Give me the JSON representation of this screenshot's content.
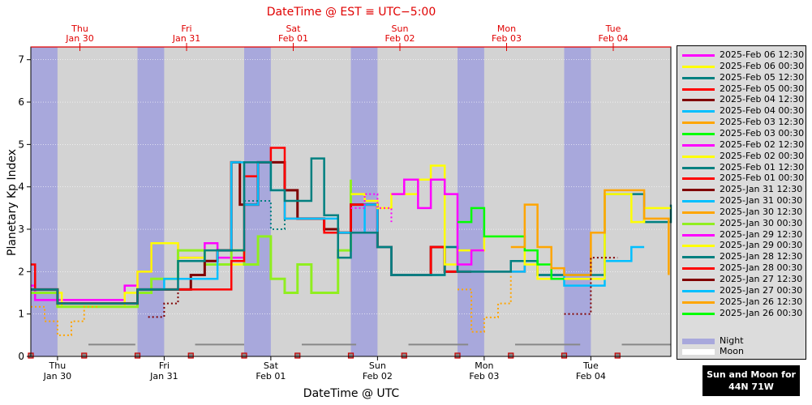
{
  "chart_data": {
    "type": "line",
    "title": "DateTime @ EST ≡ UTC−5:00",
    "xlabel": "DateTime @ UTC",
    "ylabel": "Planetary Kp Index",
    "ylim": [
      0,
      7.3
    ],
    "yticks": [
      "0",
      "1",
      "2",
      "3",
      "4",
      "5",
      "6",
      "7"
    ],
    "xlim_days": [
      0,
      6
    ],
    "bottom_ticks": [
      {
        "day": "Thu",
        "date": "Jan 30"
      },
      {
        "day": "Fri",
        "date": "Jan 31"
      },
      {
        "day": "Sat",
        "date": "Feb 01"
      },
      {
        "day": "Sun",
        "date": "Feb 02"
      },
      {
        "day": "Mon",
        "date": "Feb 03"
      },
      {
        "day": "Tue",
        "date": "Feb 04"
      }
    ],
    "top_ticks": [
      {
        "day": "Thu",
        "date": "Jan 30"
      },
      {
        "day": "Fri",
        "date": "Jan 31"
      },
      {
        "day": "Sat",
        "date": "Feb 01"
      },
      {
        "day": "Sun",
        "date": "Feb 02"
      },
      {
        "day": "Mon",
        "date": "Feb 03"
      },
      {
        "day": "Tue",
        "date": "Feb 04"
      }
    ],
    "night_bands": [
      [
        0.0,
        0.25
      ],
      [
        1.0,
        1.25
      ],
      [
        2.0,
        2.25
      ],
      [
        3.0,
        3.25
      ],
      [
        4.0,
        4.25
      ],
      [
        5.0,
        5.25
      ]
    ],
    "moon_segments": [
      [
        0.54,
        0.98
      ],
      [
        1.54,
        2.0
      ],
      [
        2.54,
        3.05
      ],
      [
        3.54,
        4.1
      ],
      [
        4.54,
        5.15
      ],
      [
        5.54,
        6.0
      ]
    ],
    "sun_markers": [
      0.0,
      0.5,
      1.0,
      1.5,
      2.0,
      2.5,
      3.0,
      3.5,
      4.0,
      4.5,
      5.0,
      5.5
    ],
    "legend": [
      {
        "label": "2025-Feb 06 12:30",
        "color": "#ff00ff"
      },
      {
        "label": "2025-Feb 06 00:30",
        "color": "#ffff00"
      },
      {
        "label": "2025-Feb 05 12:30",
        "color": "#008080"
      },
      {
        "label": "2025-Feb 05 00:30",
        "color": "#ff0000"
      },
      {
        "label": "2025-Feb 04 12:30",
        "color": "#800000"
      },
      {
        "label": "2025-Feb 04 00:30",
        "color": "#00bfff"
      },
      {
        "label": "2025-Feb 03 12:30",
        "color": "#ffa500"
      },
      {
        "label": "2025-Feb 03 00:30",
        "color": "#00ff00"
      },
      {
        "label": "2025-Feb 02 12:30",
        "color": "#ff00ff"
      },
      {
        "label": "2025-Feb 02 00:30",
        "color": "#ffff00"
      },
      {
        "label": "2025-Feb 01 12:30",
        "color": "#008080"
      },
      {
        "label": "2025-Feb 01 00:30",
        "color": "#ff0000"
      },
      {
        "label": "2025-Jan 31 12:30",
        "color": "#800000"
      },
      {
        "label": "2025-Jan 31 00:30",
        "color": "#00bfff"
      },
      {
        "label": "2025-Jan 30 12:30",
        "color": "#ffa500"
      },
      {
        "label": "2025-Jan 30 00:30",
        "color": "#90ee20"
      },
      {
        "label": "2025-Jan 29 12:30",
        "color": "#ff00ff"
      },
      {
        "label": "2025-Jan 29 00:30",
        "color": "#ffff00"
      },
      {
        "label": "2025-Jan 28 12:30",
        "color": "#008080"
      },
      {
        "label": "2025-Jan 28 00:30",
        "color": "#ff0000"
      },
      {
        "label": "2025-Jan 27 12:30",
        "color": "#800000"
      },
      {
        "label": "2025-Jan 27 00:30",
        "color": "#00bfff"
      },
      {
        "label": "2025-Jan 26 12:30",
        "color": "#ffa500"
      },
      {
        "label": "2025-Jan 26 00:30",
        "color": "#00ff00"
      }
    ],
    "legend_extra": [
      {
        "label": "Night",
        "color": "#a8a8dc"
      },
      {
        "label": "Moon",
        "color": "#ffffff"
      }
    ],
    "series": [
      {
        "color": "#ff00ff",
        "width": 2.5,
        "dash": false,
        "x": [
          0.0,
          0.04,
          0.29,
          0.88,
          1.0,
          1.13,
          1.38,
          1.63,
          1.75,
          2.0
        ],
        "y": [
          1.67,
          1.33,
          1.33,
          1.67,
          2.0,
          2.67,
          2.33,
          2.67,
          2.33,
          2.33
        ]
      },
      {
        "color": "#ffff00",
        "width": 2.5,
        "dash": false,
        "x": [
          0.0,
          0.04,
          0.29,
          0.88,
          1.0,
          1.13,
          1.38,
          1.63,
          1.88,
          2.0
        ],
        "y": [
          1.5,
          1.5,
          1.17,
          1.5,
          2.0,
          2.67,
          2.33,
          2.5,
          2.17,
          2.17
        ]
      },
      {
        "color": "#90ee20",
        "width": 3,
        "dash": false,
        "x": [
          0.0,
          0.25,
          0.88,
          1.0,
          1.13,
          1.38,
          1.63,
          1.88,
          2.0,
          2.13,
          2.25,
          2.38,
          2.5,
          2.63,
          2.88,
          3.0
        ],
        "y": [
          1.5,
          1.17,
          1.17,
          1.5,
          1.83,
          2.5,
          2.17,
          2.5,
          2.17,
          2.83,
          1.83,
          1.5,
          2.17,
          1.5,
          2.5,
          4.17
        ]
      },
      {
        "color": "#ffa500",
        "width": 2,
        "dash": true,
        "x": [
          0.0,
          0.13,
          0.25,
          0.38,
          0.5,
          0.63
        ],
        "y": [
          1.17,
          0.83,
          0.5,
          0.83,
          1.17,
          1.17
        ]
      },
      {
        "color": "#800000",
        "width": 2,
        "dash": true,
        "x": [
          1.1,
          1.25,
          1.38,
          1.5,
          1.63
        ],
        "y": [
          0.93,
          1.25,
          1.58,
          1.92,
          1.92
        ]
      },
      {
        "color": "#800000",
        "width": 3,
        "dash": false,
        "x": [
          0.0,
          0.25,
          0.88,
          1.0,
          1.5,
          1.63,
          1.75,
          1.88,
          1.96,
          2.0,
          2.13,
          2.25,
          2.38,
          2.5,
          2.63,
          2.75,
          2.88,
          3.0,
          3.13,
          3.25,
          3.38,
          3.5,
          3.63,
          3.75,
          3.88,
          4.0,
          4.13
        ],
        "y": [
          1.58,
          1.25,
          1.25,
          1.58,
          1.92,
          2.25,
          2.5,
          4.58,
          3.58,
          3.58,
          4.58,
          4.58,
          3.92,
          3.25,
          3.25,
          3.0,
          2.92,
          3.58,
          3.58,
          2.58,
          1.92,
          1.92,
          1.92,
          2.58,
          2.0,
          2.0,
          2.0
        ]
      },
      {
        "color": "#ff0000",
        "width": 2.5,
        "dash": false,
        "x": [
          0.0,
          0.04,
          0.25,
          0.88,
          1.0,
          1.88,
          2.0,
          2.13,
          2.25,
          2.38,
          2.5,
          2.75,
          2.88,
          3.0,
          3.13,
          3.25,
          3.38,
          3.5,
          3.63,
          3.75,
          3.88,
          4.0,
          4.25,
          4.5,
          4.63,
          4.75,
          4.88,
          5.0
        ],
        "y": [
          2.17,
          1.58,
          1.25,
          1.25,
          1.58,
          2.25,
          4.25,
          4.58,
          4.92,
          3.25,
          3.25,
          2.92,
          2.92,
          3.58,
          3.58,
          2.58,
          1.92,
          1.92,
          1.92,
          2.58,
          2.0,
          2.0,
          2.0,
          2.0,
          2.25,
          1.92,
          1.92,
          1.92
        ]
      },
      {
        "color": "#00bfff",
        "width": 2.5,
        "dash": false,
        "x": [
          1.0,
          1.13,
          1.25,
          1.5,
          1.75,
          1.88,
          2.0,
          2.13,
          2.25,
          2.38,
          2.88,
          3.0,
          3.13,
          3.25,
          3.38,
          3.88,
          4.0,
          4.25,
          4.5,
          4.63,
          4.75,
          5.0,
          5.25,
          5.38,
          5.63,
          5.75
        ],
        "y": [
          1.58,
          1.58,
          1.83,
          1.83,
          2.5,
          4.58,
          3.58,
          4.58,
          3.92,
          3.25,
          2.92,
          2.92,
          3.58,
          2.58,
          1.92,
          2.58,
          2.0,
          2.0,
          2.0,
          2.25,
          1.92,
          1.67,
          1.67,
          2.25,
          2.58,
          2.58
        ]
      },
      {
        "color": "#008080",
        "width": 2.5,
        "dash": false,
        "x": [
          0.0,
          0.25,
          0.88,
          1.0,
          1.38,
          1.63,
          2.0,
          2.25,
          2.38,
          2.63,
          2.75,
          2.88,
          3.0,
          3.25,
          3.38,
          3.88,
          4.0,
          4.25,
          4.5,
          4.63,
          4.75,
          5.0,
          5.38,
          5.63,
          5.75,
          6.0
        ],
        "y": [
          1.58,
          1.25,
          1.25,
          1.58,
          2.25,
          2.5,
          4.58,
          3.92,
          3.67,
          4.67,
          3.33,
          2.33,
          2.92,
          2.58,
          1.92,
          2.58,
          2.0,
          2.0,
          2.25,
          2.25,
          1.92,
          1.92,
          3.83,
          3.83,
          3.17,
          3.58
        ]
      },
      {
        "color": "#ffff00",
        "width": 2.5,
        "dash": false,
        "x": [
          3.0,
          3.13,
          3.25,
          3.38,
          3.63,
          3.75,
          3.88,
          4.0,
          4.25,
          4.63,
          4.75,
          5.0,
          5.38,
          5.63,
          5.75,
          6.0
        ],
        "y": [
          3.83,
          3.67,
          3.5,
          3.83,
          4.17,
          4.5,
          2.17,
          2.5,
          2.83,
          2.17,
          1.83,
          1.83,
          3.83,
          3.17,
          3.5,
          3.5
        ]
      },
      {
        "color": "#ff00ff",
        "width": 2,
        "dash": true,
        "x": [
          3.0,
          3.13,
          3.25,
          3.38
        ],
        "y": [
          3.5,
          3.83,
          3.5,
          3.17
        ]
      },
      {
        "color": "#ff00ff",
        "width": 2.5,
        "dash": false,
        "x": [
          3.38,
          3.5,
          3.63,
          3.75,
          3.88,
          4.0,
          4.13,
          4.25
        ],
        "y": [
          3.83,
          4.17,
          3.5,
          4.17,
          3.83,
          2.17,
          2.5,
          2.5
        ]
      },
      {
        "color": "#00ff00",
        "width": 2.5,
        "dash": false,
        "x": [
          4.0,
          4.13,
          4.25,
          4.38,
          4.5,
          4.63,
          4.75,
          4.88,
          5.0
        ],
        "y": [
          3.17,
          3.5,
          2.83,
          2.83,
          2.83,
          2.5,
          2.17,
          1.83,
          1.83
        ]
      },
      {
        "color": "#ffa500",
        "width": 2.5,
        "dash": false,
        "x": [
          4.5,
          4.63,
          4.75,
          4.88,
          5.0,
          5.25,
          5.38,
          5.63,
          5.75,
          5.98
        ],
        "y": [
          2.58,
          3.58,
          2.58,
          2.08,
          1.92,
          2.92,
          3.92,
          3.92,
          3.25,
          1.92
        ]
      },
      {
        "color": "#ffa500",
        "width": 2,
        "dash": true,
        "x": [
          4.0,
          4.13,
          4.25,
          4.38,
          4.5
        ],
        "y": [
          1.58,
          0.58,
          0.92,
          1.25,
          1.92
        ]
      },
      {
        "color": "#800000",
        "width": 2,
        "dash": true,
        "x": [
          5.0,
          5.25,
          5.38,
          5.5
        ],
        "y": [
          1.0,
          2.33,
          2.33,
          2.33
        ]
      },
      {
        "color": "#008080",
        "width": 2,
        "dash": true,
        "x": [
          2.0,
          2.13,
          2.25,
          2.38
        ],
        "y": [
          3.67,
          3.67,
          3.0,
          3.25
        ]
      }
    ],
    "sun_moon_note": [
      "Sun and Moon for",
      "44N 71W"
    ]
  }
}
